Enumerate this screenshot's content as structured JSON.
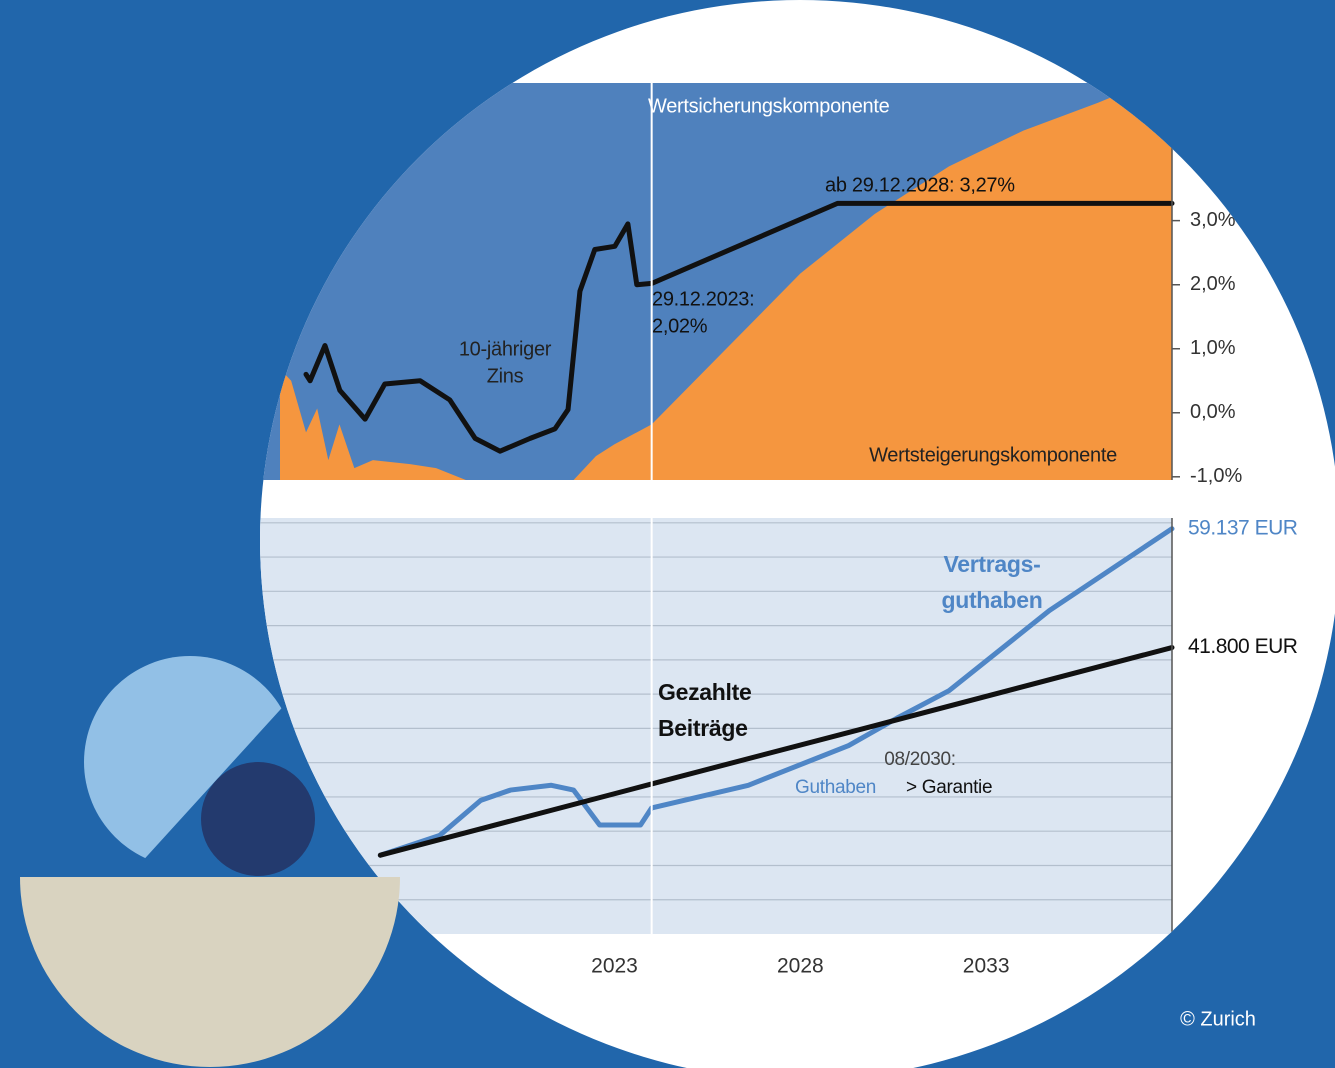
{
  "chart_data": [
    {
      "type": "line",
      "xlim": [
        2014,
        2038
      ],
      "ylim": [
        -1.05,
        5.15
      ],
      "y2lim": [
        0,
        100
      ],
      "yticks": [
        {
          "value": -1,
          "label": "-1,0%"
        },
        {
          "value": 0,
          "label": "0,0%"
        },
        {
          "value": 1,
          "label": "1,0%"
        },
        {
          "value": 2,
          "label": "2,0%"
        },
        {
          "value": 3,
          "label": "3,0%"
        }
      ],
      "background": "#4f81bd",
      "xline": 2024,
      "series": [
        {
          "kind": "area",
          "axis": "y2",
          "color": "#f5963f",
          "x": [
            2014.0,
            2014.3,
            2014.7,
            2015.0,
            2015.3,
            2015.6,
            2016.0,
            2016.5,
            2017.5,
            2018.2,
            2019.0,
            2021.9,
            2022.5,
            2023.0,
            2024.0,
            2026.0,
            2028.0,
            2030.0,
            2032.0,
            2034.0,
            2036.0,
            2037.3,
            2038.0
          ],
          "values": [
            28,
            25,
            12,
            18,
            5,
            14,
            3,
            5,
            4,
            3,
            0,
            0,
            6,
            9,
            14,
            33,
            52,
            67,
            79,
            88,
            95,
            100,
            100
          ]
        },
        {
          "kind": "line",
          "color": "#111111",
          "x": [
            2014.7,
            2014.81,
            2015.21,
            2015.61,
            2016.29,
            2016.82,
            2017.77,
            2018.57,
            2019.25,
            2019.92,
            2020.73,
            2021.4,
            2021.75,
            2022.07,
            2022.47,
            2023.01,
            2023.36,
            2023.6,
            2024.0,
            2029.0,
            2038.0
          ],
          "values": [
            0.6,
            0.5,
            1.05,
            0.35,
            -0.1,
            0.45,
            0.5,
            0.2,
            -0.4,
            -0.6,
            -0.4,
            -0.25,
            0.05,
            1.9,
            2.55,
            2.6,
            2.95,
            2.0,
            2.02,
            3.27,
            3.27
          ]
        }
      ],
      "annotations": [
        "Wertsicherungskomponente",
        "ab 29.12.2028: 3,27%",
        "29.12.2023:",
        "2,02%",
        "10-jähriger",
        "Zins",
        "Wertsteigerungskomponente"
      ]
    },
    {
      "type": "line",
      "xlim": [
        2014,
        2038
      ],
      "ylim": [
        0,
        60700
      ],
      "xticks": [
        2023,
        2028,
        2033
      ],
      "ygrid": [
        5000,
        10000,
        15000,
        20000,
        25000,
        30000,
        35000,
        40000,
        45000,
        50000,
        55000,
        60000
      ],
      "background": "#dce6f2",
      "xline": 2024,
      "series": [
        {
          "kind": "line",
          "color": "#4f86c6",
          "x": [
            2016.7,
            2018.3,
            2019.4,
            2020.2,
            2021.3,
            2021.9,
            2022.6,
            2023.7,
            2024.0,
            2026.6,
            2029.3,
            2030.6,
            2032.0,
            2034.7,
            2038.0
          ],
          "values": [
            11500,
            14400,
            19500,
            21000,
            21700,
            21000,
            15900,
            15900,
            18400,
            21700,
            27500,
            31500,
            35500,
            47200,
            59137
          ],
          "value_labels": [
            null,
            null,
            null,
            null,
            null,
            null,
            null,
            null,
            null,
            null,
            null,
            null,
            null,
            null,
            "59.137 EUR"
          ]
        },
        {
          "kind": "line",
          "color": "#111111",
          "x": [
            2016.7,
            2024.0,
            2030.0,
            2038.0
          ],
          "values": [
            11500,
            21900,
            30400,
            41800
          ],
          "value_labels": [
            null,
            null,
            null,
            "41.800 EUR"
          ]
        }
      ],
      "annotations": [
        "Vertrags-",
        "guthaben",
        "Gezahlte",
        "Beiträge",
        "08/2030:",
        "Guthaben",
        "> Garantie"
      ]
    }
  ],
  "credit": "© Zurich"
}
